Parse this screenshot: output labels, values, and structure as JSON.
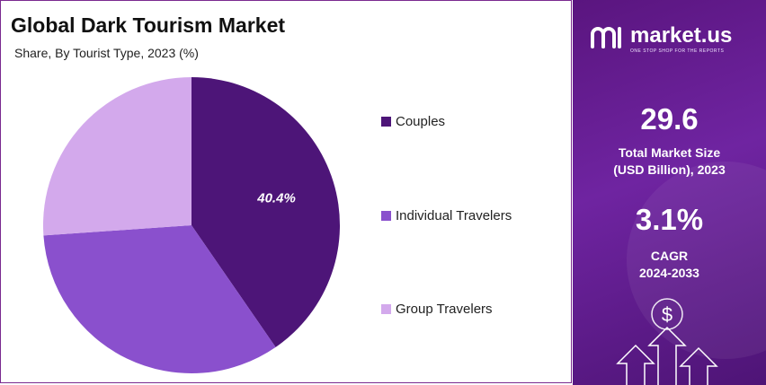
{
  "title": "Global Dark Tourism Market",
  "subtitle": "Share, By Tourist Type, 2023 (%)",
  "chart_data": {
    "type": "pie",
    "categories": [
      "Couples",
      "Individual Travelers",
      "Group Travelers"
    ],
    "values": [
      40.4,
      33.5,
      26.1
    ],
    "data_labels": [
      "40.4%",
      "",
      ""
    ],
    "colors": [
      "#4d1578",
      "#8a50cd",
      "#d3a9ec"
    ],
    "legend_position": "right"
  },
  "brand": {
    "name": "market.us",
    "tagline": "ONE STOP SHOP FOR THE REPORTS"
  },
  "stats": [
    {
      "value": "29.6",
      "label_line1": "Total Market Size",
      "label_line2": "(USD Billion), 2023"
    },
    {
      "value": "3.1%",
      "label_line1": "CAGR",
      "label_line2": "2024-2033"
    }
  ],
  "decor": {
    "dollar_sign": "$"
  }
}
